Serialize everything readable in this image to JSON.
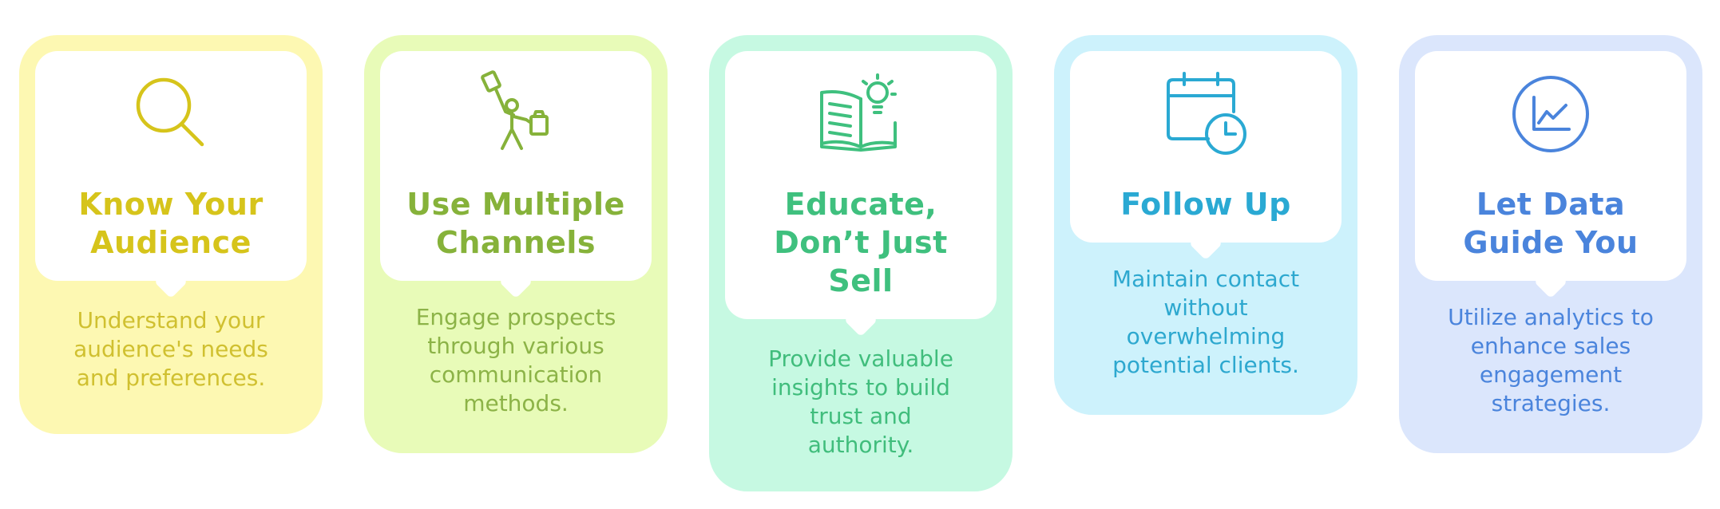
{
  "cards": [
    {
      "title": "Know Your\nAudience",
      "description": "Understand your\naudience's needs\nand preferences.",
      "icon": "magnifying-glass-icon",
      "color": "#d6c41b",
      "background": "#fdf8b2"
    },
    {
      "title": "Use Multiple\nChannels",
      "description": "Engage prospects\nthrough various\ncommunication\nmethods.",
      "icon": "person-juggling-icon",
      "color": "#86b23a",
      "background": "#e8fbb8"
    },
    {
      "title": "Educate,\nDon’t Just\nSell",
      "description": "Provide valuable\ninsights to build\ntrust and\nauthority.",
      "icon": "book-lightbulb-icon",
      "color": "#3fc07e",
      "background": "#c6f9e2"
    },
    {
      "title": "Follow Up",
      "description": "Maintain contact\nwithout\noverwhelming\npotential clients.",
      "icon": "calendar-clock-icon",
      "color": "#2aa9d3",
      "background": "#cdf2fc"
    },
    {
      "title": "Let Data\nGuide You",
      "description": "Utilize analytics to\nenhance sales\nengagement\nstrategies.",
      "icon": "chart-circle-icon",
      "color": "#4a84dc",
      "background": "#dbe6fc"
    }
  ]
}
